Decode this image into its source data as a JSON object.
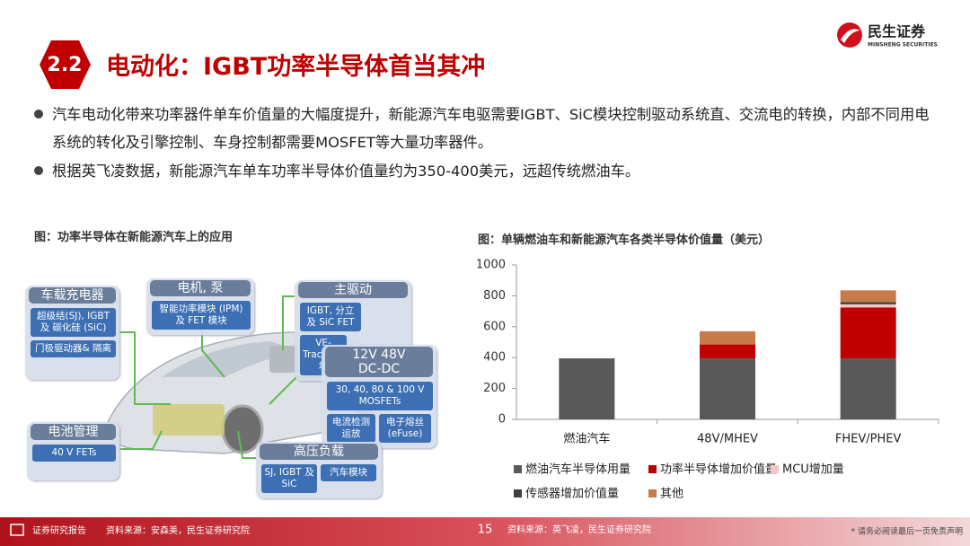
{
  "header": {
    "badge": "2.2",
    "title": "电动化：IGBT功率半导体首当其冲",
    "logo_cn": "民生证券",
    "logo_en": "MINSHENG SECURITIES"
  },
  "bullets": [
    "汽车电动化带来功率器件单车价值量的大幅度提升，新能源汽车电驱需要IGBT、SiC模块控制驱动系统直、交流电的转换，内部不同用电系统的转化及引擎控制、车身控制都需要MOSFET等大量功率器件。",
    "根据英飞凌数据，新能源汽车单车功率半导体价值量约为350-400美元，远超传统燃油车。"
  ],
  "diagram": {
    "caption": "图：功率半导体在新能源汽车上的应用",
    "boxes": [
      {
        "title": "车载充电器",
        "items": [
          "超级结(SJ), IGBT 及 碳化硅 (SiC)",
          "门极驱动器& 隔离"
        ]
      },
      {
        "title": "电机, 泵",
        "items": [
          "智能功率模块 (IPM) 及 FET 模块"
        ]
      },
      {
        "title": "主驱动",
        "items": [
          "IGBT, 分立 及 SiC FET",
          "VE-Trac™ 模块"
        ]
      },
      {
        "title": "12V 48V DC-DC",
        "items": [
          "30, 40, 80 & 100 V MOSFETs",
          "电流检测运放",
          "电子熔丝 (eFuse)"
        ]
      },
      {
        "title": "电池管理",
        "items": [
          "40 V FETs"
        ]
      },
      {
        "title": "高压负载",
        "items": [
          "SJ, IGBT 及 SiC",
          "汽车模块"
        ]
      }
    ]
  },
  "chart_data": {
    "type": "stacked-bar",
    "title": "图：单辆燃油车和新能源汽车各类半导体价值量（美元）",
    "categories": [
      "燃油汽车",
      "48V/MHEV",
      "FHEV/PHEV"
    ],
    "series": [
      {
        "name": "燃油汽车半导体用量",
        "color": "#595959",
        "values": [
          395,
          395,
          395
        ]
      },
      {
        "name": "功率半导体增加价值量",
        "color": "#c00000",
        "values": [
          0,
          90,
          330
        ]
      },
      {
        "name": "MCU增加量",
        "color": "#f4c7c3",
        "values": [
          0,
          0,
          20
        ]
      },
      {
        "name": "传感器增加价值量",
        "color": "#3f3f3f",
        "values": [
          0,
          0,
          15
        ]
      },
      {
        "name": "其他",
        "color": "#c77b49",
        "values": [
          0,
          85,
          75
        ]
      }
    ],
    "ylim": [
      0,
      1000
    ],
    "yticks": [
      0,
      200,
      400,
      600,
      800,
      1000
    ],
    "grid": false
  },
  "footer": {
    "left": "证券研究报告",
    "source_left": "资料来源：安森美，民生证券研究院",
    "page": "15",
    "source_right": "资料来源：英飞凌，民生证券研究院",
    "disclaimer": "* 请务必阅读最后一页免责声明"
  }
}
